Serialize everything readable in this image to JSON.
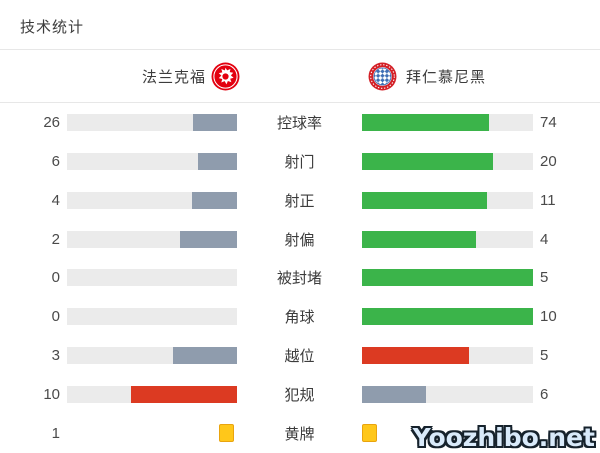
{
  "title": "技术统计",
  "watermark": "Yoozhibo.net",
  "teams": {
    "home": {
      "name": "法兰克福",
      "crest": "eintracht-frankfurt-crest"
    },
    "away": {
      "name": "拜仁慕尼黑",
      "crest": "bayern-munich-crest"
    }
  },
  "colors": {
    "green": "#3BB44A",
    "red": "#DC3A22",
    "slate": "#8F9CAD",
    "track": "#EBEBEB",
    "divider": "#E7E7E7",
    "yellow_card": "#FFC71A",
    "yellow_card_border": "#E9A40E",
    "home_badge_red": "#E3000F",
    "away_ring_red": "#D32027",
    "away_blue": "#3E6FB5"
  },
  "stats": {
    "rows": [
      {
        "label": "控球率",
        "home": {
          "value": "26",
          "fill": 0.26,
          "color": "slate"
        },
        "away": {
          "value": "74",
          "fill": 0.74,
          "color": "green"
        }
      },
      {
        "label": "射门",
        "home": {
          "value": "6",
          "fill": 0.231,
          "color": "slate"
        },
        "away": {
          "value": "20",
          "fill": 0.769,
          "color": "green"
        }
      },
      {
        "label": "射正",
        "home": {
          "value": "4",
          "fill": 0.267,
          "color": "slate"
        },
        "away": {
          "value": "11",
          "fill": 0.733,
          "color": "green"
        }
      },
      {
        "label": "射偏",
        "home": {
          "value": "2",
          "fill": 0.333,
          "color": "slate"
        },
        "away": {
          "value": "4",
          "fill": 0.667,
          "color": "green"
        }
      },
      {
        "label": "被封堵",
        "home": {
          "value": "0",
          "fill": 0,
          "color": "slate"
        },
        "away": {
          "value": "5",
          "fill": 1,
          "color": "green"
        }
      },
      {
        "label": "角球",
        "home": {
          "value": "0",
          "fill": 0,
          "color": "slate"
        },
        "away": {
          "value": "10",
          "fill": 1,
          "color": "green"
        }
      },
      {
        "label": "越位",
        "home": {
          "value": "3",
          "fill": 0.375,
          "color": "slate"
        },
        "away": {
          "value": "5",
          "fill": 0.625,
          "color": "red"
        }
      },
      {
        "label": "犯规",
        "home": {
          "value": "10",
          "fill": 0.625,
          "color": "red"
        },
        "away": {
          "value": "6",
          "fill": 0.375,
          "color": "slate"
        }
      },
      {
        "label": "黄牌",
        "type": "cards",
        "home": {
          "value": "1",
          "cards": 1
        },
        "away": {
          "cards": 1
        }
      }
    ]
  },
  "chart_data": {
    "type": "bar",
    "orientation": "horizontal-paired-from-center",
    "title": "技术统计",
    "categories": [
      "控球率",
      "射门",
      "射正",
      "射偏",
      "被封堵",
      "角球",
      "越位",
      "犯规",
      "黄牌"
    ],
    "series": [
      {
        "name": "法兰克福",
        "values": [
          26,
          6,
          4,
          2,
          0,
          0,
          3,
          10,
          1
        ]
      },
      {
        "name": "拜仁慕尼黑",
        "values": [
          74,
          20,
          11,
          4,
          5,
          10,
          5,
          6,
          1
        ]
      }
    ],
    "bar_fill_rule": "each bar length = value / (home value + away value) of its row",
    "bar_colors": {
      "trailing_team": "slate gray #8F9CAD",
      "leading_team_positive_stat": "green #3BB44A",
      "leading_team_negative_stat": "red #DC3A22 (越位 away, 犯规 home)"
    },
    "yellow_cards_shown_as": "yellow card icons, one per card; away numeric value hidden behind watermark"
  }
}
